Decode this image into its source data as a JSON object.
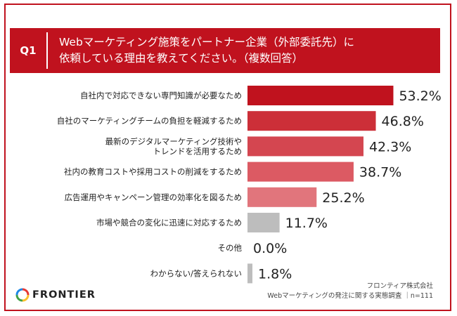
{
  "question": {
    "label": "Q1",
    "text": "Webマーケティング施策をパートナー企業（外部委託先）に\n依頼している理由を教えてください。（複数回答）"
  },
  "colors": {
    "accent": "#c0121e",
    "grey_bar": "#bdbdbd"
  },
  "chart_data": {
    "type": "bar",
    "orientation": "horizontal",
    "categories": [
      "自社内で対応できない専門知識が必要なため",
      "自社のマーケティングチームの負担を軽減するため",
      "最新のデジタルマーケティング技術や\nトレンドを活用するため",
      "社内の教育コストや採用コストの削減をするため",
      "広告運用やキャンペーン管理の効率化を図るため",
      "市場や競合の変化に迅速に対応するため",
      "その他",
      "わからない/答えられない"
    ],
    "values": [
      53.2,
      46.8,
      42.3,
      38.7,
      25.2,
      11.7,
      0.0,
      1.8
    ],
    "value_labels": [
      "53.2%",
      "46.8%",
      "42.3%",
      "38.7%",
      "25.2%",
      "11.7%",
      "0.0%",
      "1.8%"
    ],
    "bar_colors": [
      "#c0121e",
      "#cc2f38",
      "#d44650",
      "#dc5a63",
      "#e1757c",
      "#bdbdbd",
      "#bdbdbd",
      "#bdbdbd"
    ],
    "xlim": [
      0,
      100
    ],
    "grid": false,
    "legend": "none"
  },
  "footer": {
    "logo_text": "FRONTIER",
    "company": "フロンティア株式会社",
    "survey": "Webマーケティングの発注に関する実態調査 ｜n=111"
  }
}
